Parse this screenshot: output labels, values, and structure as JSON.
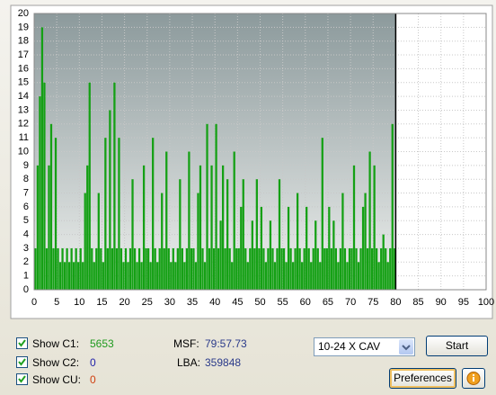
{
  "chart_data": {
    "type": "bar",
    "color": "#14a014",
    "x": [
      0.5,
      1,
      1.5,
      2,
      2.5,
      3,
      3.5,
      4,
      4.5,
      5,
      5.5,
      6,
      6.5,
      7,
      7.5,
      8,
      8.5,
      9,
      9.5,
      10,
      10.5,
      11,
      11.5,
      12,
      12.5,
      13,
      13.5,
      14,
      14.5,
      15,
      15.5,
      16,
      16.5,
      17,
      17.5,
      18,
      18.5,
      19,
      19.5,
      20,
      20.5,
      21,
      21.5,
      22,
      22.5,
      23,
      23.5,
      24,
      24.5,
      25,
      25.5,
      26,
      26.5,
      27,
      27.5,
      28,
      28.5,
      29,
      29.5,
      30,
      30.5,
      31,
      31.5,
      32,
      32.5,
      33,
      33.5,
      34,
      34.5,
      35,
      35.5,
      36,
      36.5,
      37,
      37.5,
      38,
      38.5,
      39,
      39.5,
      40,
      40.5,
      41,
      41.5,
      42,
      42.5,
      43,
      43.5,
      44,
      44.5,
      45,
      45.5,
      46,
      46.5,
      47,
      47.5,
      48,
      48.5,
      49,
      49.5,
      50,
      50.5,
      51,
      51.5,
      52,
      52.5,
      53,
      53.5,
      54,
      54.5,
      55,
      55.5,
      56,
      56.5,
      57,
      57.5,
      58,
      58.5,
      59,
      59.5,
      60,
      60.5,
      61,
      61.5,
      62,
      62.5,
      63,
      63.5,
      64,
      64.5,
      65,
      65.5,
      66,
      66.5,
      67,
      67.5,
      68,
      68.5,
      69,
      69.5,
      70,
      70.5,
      71,
      71.5,
      72,
      72.5,
      73,
      73.5,
      74,
      74.5,
      75,
      75.5,
      76,
      76.5,
      77,
      77.5,
      78,
      78.5,
      79,
      79.5,
      80
    ],
    "values": [
      3,
      9,
      14,
      19,
      15,
      3,
      9,
      12,
      3,
      11,
      3,
      2,
      3,
      2,
      3,
      2,
      3,
      2,
      3,
      2,
      3,
      2,
      7,
      9,
      15,
      3,
      2,
      3,
      7,
      3,
      2,
      11,
      3,
      13,
      3,
      15,
      3,
      11,
      3,
      2,
      3,
      2,
      3,
      8,
      3,
      2,
      3,
      2,
      9,
      3,
      3,
      2,
      11,
      3,
      2,
      3,
      7,
      3,
      10,
      3,
      2,
      3,
      2,
      3,
      8,
      3,
      2,
      3,
      10,
      3,
      3,
      2,
      7,
      9,
      3,
      2,
      12,
      3,
      9,
      3,
      12,
      3,
      5,
      9,
      3,
      8,
      3,
      2,
      10,
      3,
      3,
      6,
      8,
      3,
      2,
      3,
      5,
      3,
      8,
      3,
      6,
      3,
      2,
      3,
      5,
      3,
      2,
      3,
      8,
      3,
      3,
      2,
      6,
      3,
      2,
      3,
      7,
      3,
      2,
      3,
      6,
      3,
      2,
      3,
      5,
      3,
      2,
      11,
      3,
      3,
      6,
      3,
      5,
      3,
      2,
      3,
      7,
      3,
      2,
      3,
      3,
      9,
      3,
      2,
      3,
      6,
      7,
      3,
      10,
      3,
      9,
      3,
      2,
      3,
      4,
      3,
      2,
      3,
      12,
      3
    ],
    "xlim": [
      0,
      100
    ],
    "ylim": [
      0,
      20
    ],
    "xticks": [
      0,
      5,
      10,
      15,
      20,
      25,
      30,
      35,
      40,
      45,
      50,
      55,
      60,
      65,
      70,
      75,
      80,
      85,
      90,
      95,
      100
    ],
    "yticks": [
      0,
      1,
      2,
      3,
      4,
      5,
      6,
      7,
      8,
      9,
      10,
      11,
      12,
      13,
      14,
      15,
      16,
      17,
      18,
      19,
      20
    ],
    "grid": true
  },
  "ui": {
    "c1_label": "Show C1:",
    "c1_value": 5653,
    "c2_label": "Show C2:",
    "c2_value": 0,
    "cu_label": "Show CU:",
    "cu_value": 0,
    "msf_label": "MSF:",
    "msf_value": "79:57.73",
    "lba_label": "LBA:",
    "lba_value": 359848,
    "speed": "10-24 X CAV",
    "start": "Start",
    "preferences": "Preferences"
  }
}
